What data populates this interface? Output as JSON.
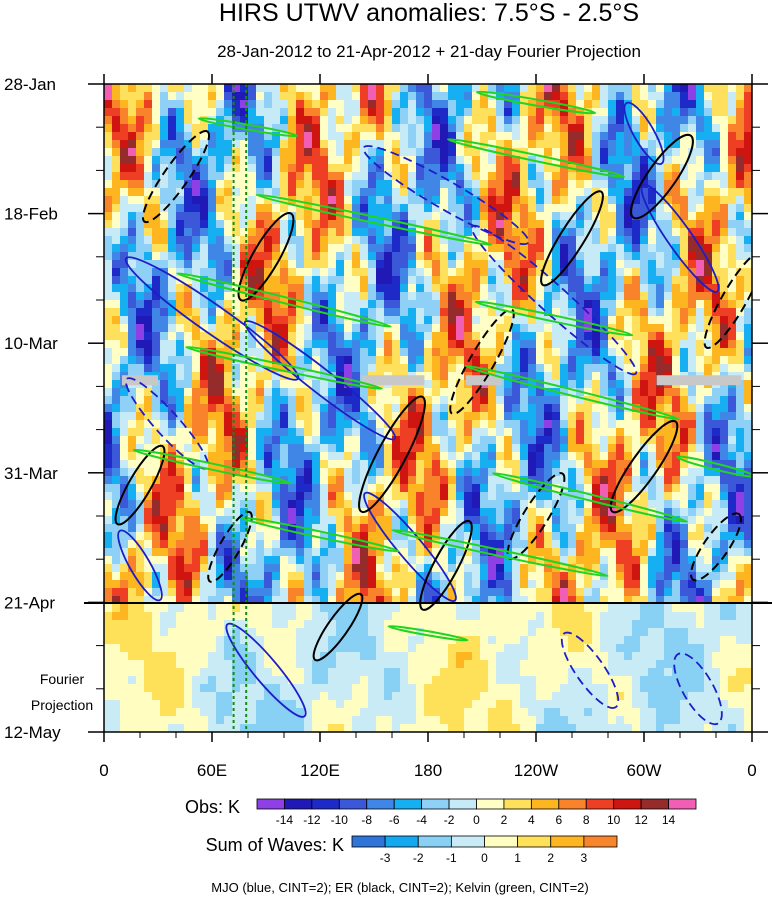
{
  "chart_data": {
    "type": "heatmap",
    "title": "HIRS UTWV anomalies: 7.5°S - 2.5°S",
    "subtitle": "28-Jan-2012 to 21-Apr-2012 + 21-day Fourier Projection",
    "x_ticks": [
      {
        "lon": 0,
        "label": "0"
      },
      {
        "lon": 60,
        "label": "60E"
      },
      {
        "lon": 120,
        "label": "120E"
      },
      {
        "lon": 180,
        "label": "180"
      },
      {
        "lon": 240,
        "label": "120W"
      },
      {
        "lon": 300,
        "label": "60W"
      },
      {
        "lon": 360,
        "label": "0"
      }
    ],
    "y_ticks": [
      {
        "day": 0,
        "label": "28-Jan"
      },
      {
        "day": 21,
        "label": "18-Feb"
      },
      {
        "day": 42,
        "label": "10-Mar"
      },
      {
        "day": 63,
        "label": "31-Mar"
      },
      {
        "day": 84,
        "label": "21-Apr"
      },
      {
        "day": 105,
        "label": "12-May"
      }
    ],
    "xlim": [
      0,
      360
    ],
    "ylim_days": [
      0,
      105
    ],
    "observation_end_day": 84,
    "projection_label": "Fourier\nProjection",
    "vertical_lines_lon": [
      72,
      79
    ],
    "obs_colorbar": {
      "name": "Obs: K",
      "labels": [
        "-14",
        "-12",
        "-10",
        "-8",
        "-6",
        "-4",
        "-2",
        "0",
        "2",
        "4",
        "6",
        "8",
        "10",
        "12",
        "14"
      ],
      "colors": [
        "#8e3fe6",
        "#2019b6",
        "#1e2ac8",
        "#3a58d8",
        "#3f86e6",
        "#16b0f2",
        "#8fd1f6",
        "#c6eaf6",
        "#fffec4",
        "#fee05c",
        "#fdb520",
        "#f8832b",
        "#ee3e23",
        "#cf1510",
        "#962b2b",
        "#f05fb3"
      ]
    },
    "waves_colorbar": {
      "name": "Sum of Waves: K",
      "labels": [
        "-3",
        "-2",
        "-1",
        "0",
        "1",
        "2",
        "3"
      ],
      "colors": [
        "#2e74d9",
        "#13a8ef",
        "#88d0f4",
        "#c8ebf6",
        "#fffdc0",
        "#fee059",
        "#fdb522",
        "#f8842b"
      ]
    },
    "footnote": "MJO (blue, CINT=2); ER (black, CINT=2); Kelvin (green, CINT=2)",
    "contour_colors": {
      "mjo": "#1e1ec8",
      "er": "#000000",
      "kelvin": "#22d422",
      "missing": "#c8c8c8"
    }
  }
}
